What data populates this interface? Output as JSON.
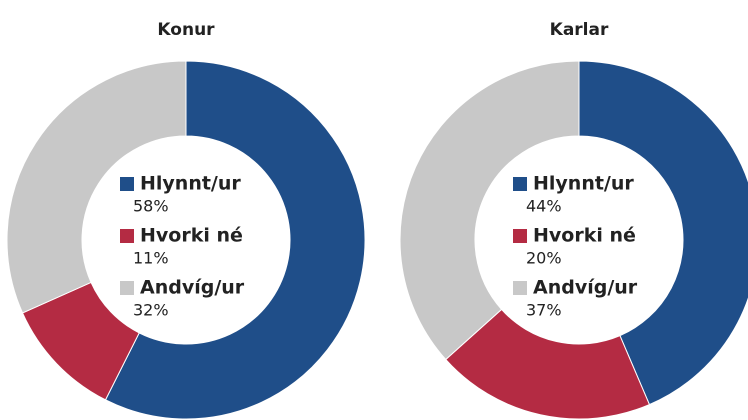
{
  "chart_data": [
    {
      "type": "donut",
      "title": "Konur",
      "categories": [
        "Hlynnt/ur",
        "Hvorki né",
        "Andvíg/ur"
      ],
      "values": [
        58,
        11,
        32
      ],
      "value_labels": [
        "58%",
        "11%",
        "32%"
      ],
      "colors": [
        "#1f4e89",
        "#b42b43",
        "#c8c8c8"
      ]
    },
    {
      "type": "donut",
      "title": "Karlar",
      "categories": [
        "Hlynnt/ur",
        "Hvorki né",
        "Andvíg/ur"
      ],
      "values": [
        44,
        20,
        37
      ],
      "value_labels": [
        "44%",
        "20%",
        "37%"
      ],
      "colors": [
        "#1f4e89",
        "#b42b43",
        "#c8c8c8"
      ]
    }
  ]
}
